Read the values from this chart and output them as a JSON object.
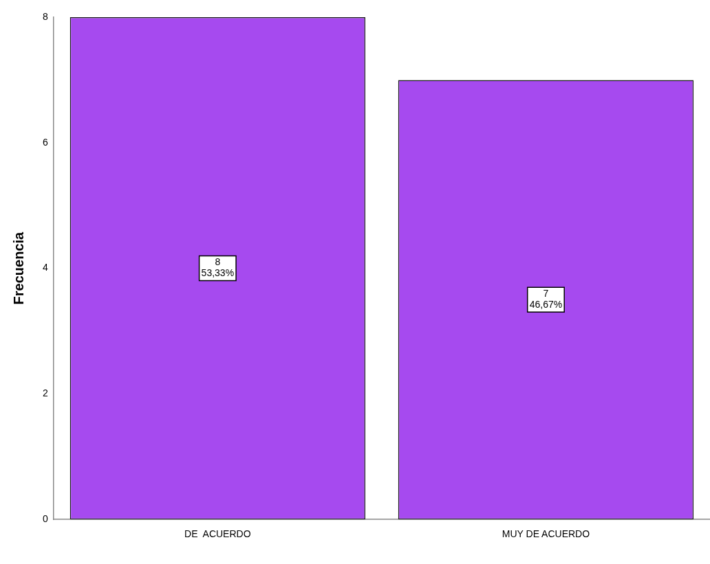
{
  "chart_data": {
    "type": "bar",
    "ylabel": "Frecuencia",
    "categories": [
      "DE  ACUERDO",
      "MUY DE ACUERDO"
    ],
    "values": [
      8,
      7
    ],
    "color": "#a64aef",
    "value_labels": [
      "8\n53,33%",
      "7\n46,67%"
    ],
    "ylim": [
      0,
      8
    ],
    "yticks": [
      0,
      2,
      4,
      6,
      8
    ]
  }
}
